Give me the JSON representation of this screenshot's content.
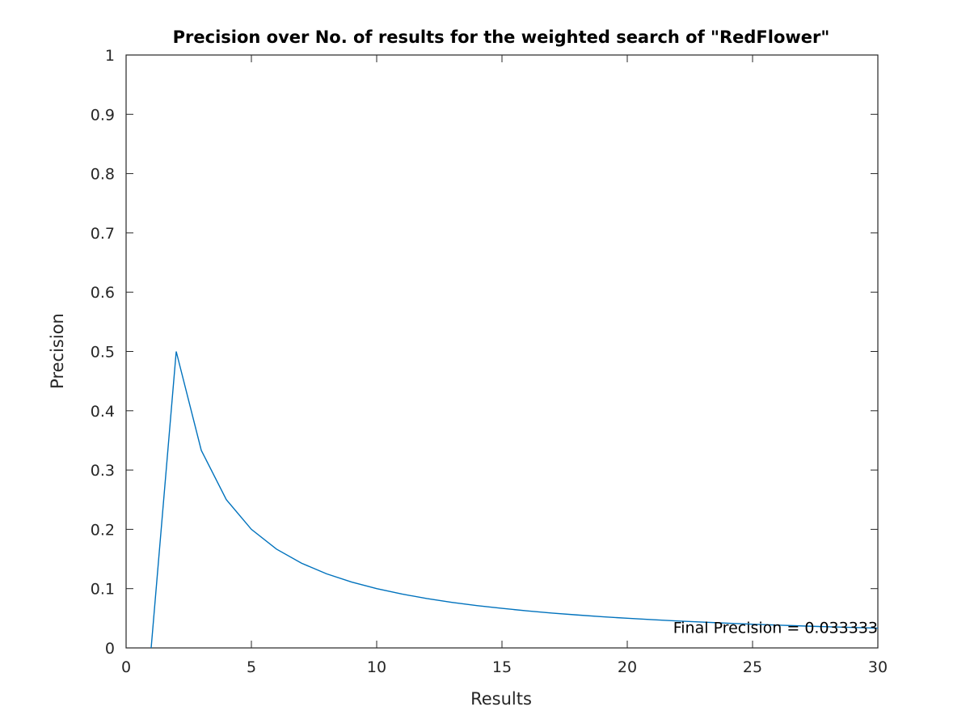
{
  "chart_data": {
    "type": "line",
    "title": "Precision over No. of results for the weighted search of \"RedFlower\"",
    "xlabel": "Results",
    "ylabel": "Precision",
    "xlim": [
      0,
      30
    ],
    "ylim": [
      0,
      1
    ],
    "x_ticks": [
      0,
      5,
      10,
      15,
      20,
      25,
      30
    ],
    "y_ticks": [
      0,
      0.1,
      0.2,
      0.3,
      0.4,
      0.5,
      0.6,
      0.7,
      0.8,
      0.9,
      1
    ],
    "grid": false,
    "series": [
      {
        "color": "#0072bd",
        "x": [
          1,
          2,
          3,
          4,
          5,
          6,
          7,
          8,
          9,
          10,
          11,
          12,
          13,
          14,
          15,
          16,
          17,
          18,
          19,
          20,
          21,
          22,
          23,
          24,
          25,
          26,
          27,
          28,
          29,
          30
        ],
        "y": [
          0,
          0.5,
          0.3333,
          0.25,
          0.2,
          0.1667,
          0.1429,
          0.125,
          0.1111,
          0.1,
          0.0909,
          0.0833,
          0.0769,
          0.0714,
          0.0667,
          0.0625,
          0.0588,
          0.0556,
          0.0526,
          0.05,
          0.0476,
          0.0455,
          0.0435,
          0.0417,
          0.04,
          0.0385,
          0.037,
          0.0357,
          0.0345,
          0.0333
        ]
      }
    ],
    "annotations": [
      {
        "text": "Final Precision = 0.033333",
        "x": 30,
        "y": 0.0333,
        "align": "right"
      }
    ]
  }
}
